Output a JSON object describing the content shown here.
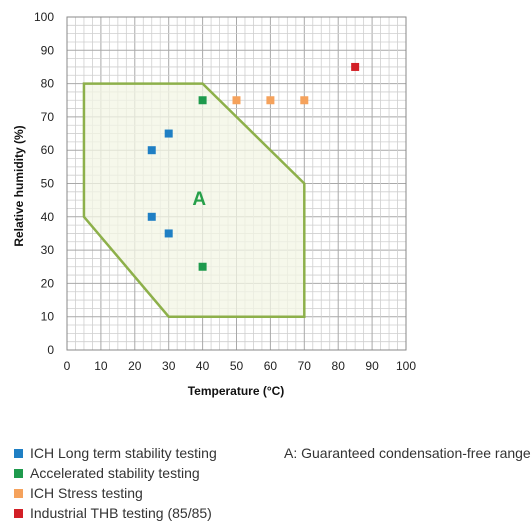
{
  "chart_data": {
    "type": "scatter",
    "xlabel": "Temperature (°C)",
    "ylabel": "Relative humidity (%)",
    "xlim": [
      0,
      100
    ],
    "ylim": [
      0,
      100
    ],
    "x_ticks": [
      0,
      10,
      20,
      30,
      40,
      50,
      60,
      70,
      80,
      90,
      100
    ],
    "y_ticks": [
      0,
      10,
      20,
      30,
      40,
      50,
      60,
      70,
      80,
      90,
      100
    ],
    "grid": "on, minor every 2.5 units",
    "region": {
      "label": "A",
      "color": "#8db04a",
      "fill": "#f3f6e4",
      "polygon": [
        [
          5,
          80
        ],
        [
          40,
          80
        ],
        [
          70,
          50
        ],
        [
          70,
          10
        ],
        [
          30,
          10
        ],
        [
          5,
          40
        ]
      ]
    },
    "series": [
      {
        "name": "ICH Long term stability testing",
        "color": "#1f7fc4",
        "points": [
          [
            25,
            60
          ],
          [
            30,
            65
          ],
          [
            25,
            40
          ],
          [
            30,
            35
          ]
        ]
      },
      {
        "name": "Accelerated stability testing",
        "color": "#1e9a4d",
        "points": [
          [
            40,
            75
          ],
          [
            40,
            25
          ]
        ]
      },
      {
        "name": "ICH Stress testing",
        "color": "#f5a25c",
        "points": [
          [
            50,
            75
          ],
          [
            60,
            75
          ],
          [
            70,
            75
          ]
        ]
      },
      {
        "name": "Industrial THB testing (85/85)",
        "color": "#d21f26",
        "points": [
          [
            85,
            85
          ]
        ]
      }
    ],
    "region_label_position": [
      39,
      45
    ],
    "legend_position": "bottom-left",
    "note": "A: Guaranteed condensation-free range"
  }
}
